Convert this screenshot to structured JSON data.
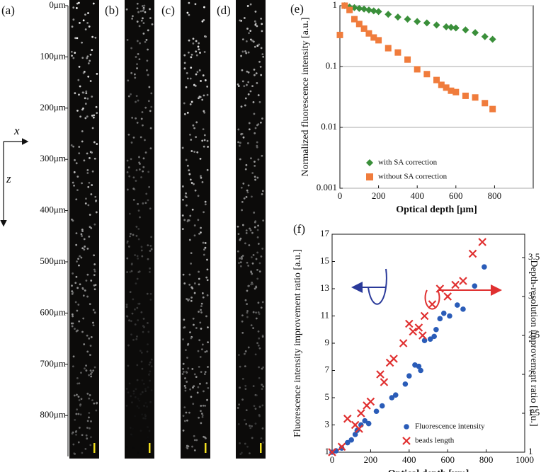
{
  "panels": {
    "labels": [
      "(a)",
      "(b)",
      "(c)",
      "(d)"
    ],
    "depths": [
      "0μm",
      "100μm",
      "200μm",
      "300μm",
      "400μm",
      "500μm",
      "600μm",
      "700μm",
      "800μm"
    ],
    "axis_x": "x",
    "axis_z": "z"
  },
  "chart_data": [
    {
      "type": "scatter",
      "panel": "(e)",
      "x_label": "Optical depth [μm]",
      "y_label": "Normalized fluorescence intensity [a.u.]",
      "xlim": [
        0,
        1000
      ],
      "xticks": [
        0,
        200,
        400,
        600,
        800
      ],
      "ylim": [
        0.001,
        1
      ],
      "yticks": [
        0.001,
        0.01,
        0.1,
        1
      ],
      "log_y": true,
      "grid": true,
      "legend": "lower left",
      "series": [
        {
          "name": "with SA correction",
          "color": "#3a8f3a",
          "marker": "diamond",
          "x": [
            25,
            50,
            75,
            100,
            125,
            150,
            175,
            200,
            250,
            300,
            350,
            400,
            450,
            500,
            550,
            575,
            600,
            650,
            700,
            750,
            790
          ],
          "values": [
            1.0,
            0.95,
            0.93,
            0.9,
            0.88,
            0.85,
            0.82,
            0.8,
            0.72,
            0.65,
            0.6,
            0.55,
            0.52,
            0.48,
            0.45,
            0.44,
            0.43,
            0.4,
            0.36,
            0.31,
            0.28
          ]
        },
        {
          "name": "without SA correction",
          "color": "#f07c3c",
          "marker": "square",
          "x": [
            0,
            25,
            50,
            75,
            100,
            125,
            150,
            175,
            200,
            250,
            300,
            350,
            400,
            450,
            500,
            525,
            550,
            575,
            600,
            650,
            700,
            750,
            790
          ],
          "values": [
            0.33,
            1.0,
            0.85,
            0.6,
            0.5,
            0.42,
            0.35,
            0.3,
            0.27,
            0.2,
            0.17,
            0.13,
            0.09,
            0.075,
            0.06,
            0.05,
            0.045,
            0.04,
            0.038,
            0.033,
            0.031,
            0.025,
            0.02
          ]
        }
      ]
    },
    {
      "type": "scatter",
      "panel": "(f)",
      "x_label": "Optical depth [μm]",
      "y_label": "Fluorescence intensity improvement ratio [a.u.]",
      "y2_label": "Depth-resolution improvement ratio [a.u.]",
      "xlim": [
        0,
        1000
      ],
      "xticks": [
        0,
        200,
        400,
        600,
        800,
        1000
      ],
      "ylim": [
        1,
        17
      ],
      "yticks": [
        1,
        3,
        5,
        7,
        9,
        11,
        13,
        15,
        17
      ],
      "y2lim": [
        1,
        3.8
      ],
      "y2ticks": [
        1,
        1.5,
        2,
        2.5,
        3,
        3.5
      ],
      "grid": false,
      "legend": "lower right",
      "series": [
        {
          "name": "Fluorescence intensity",
          "color": "#2a5cb8",
          "marker": "circle",
          "x": [
            0,
            20,
            50,
            80,
            100,
            120,
            130,
            150,
            170,
            190,
            230,
            260,
            310,
            330,
            380,
            400,
            430,
            450,
            460,
            480,
            510,
            530,
            540,
            560,
            580,
            610,
            650,
            680,
            740,
            790
          ],
          "values": [
            1,
            1.1,
            1.3,
            1.7,
            1.9,
            2.3,
            2.6,
            3,
            3.3,
            3.1,
            4,
            4.4,
            5,
            5.2,
            6,
            6.6,
            7.4,
            7.3,
            7,
            9.2,
            9.3,
            9.5,
            10,
            10.8,
            11.2,
            11,
            11.8,
            11.5,
            13.2,
            14.6
          ]
        },
        {
          "name": "beads length",
          "color": "#e03030",
          "marker": "cross",
          "axis": "y2",
          "x": [
            0,
            50,
            80,
            120,
            140,
            150,
            180,
            200,
            250,
            270,
            300,
            320,
            370,
            400,
            420,
            450,
            470,
            480,
            520,
            560,
            600,
            640,
            680,
            730,
            780
          ],
          "values": [
            1,
            1.07,
            1.43,
            1.35,
            1.3,
            1.5,
            1.6,
            1.65,
            2,
            1.9,
            2.15,
            2.2,
            2.4,
            2.65,
            2.55,
            2.6,
            2.5,
            2.75,
            2.9,
            3.1,
            3,
            3.15,
            3.2,
            3.55,
            3.7
          ]
        }
      ]
    }
  ]
}
